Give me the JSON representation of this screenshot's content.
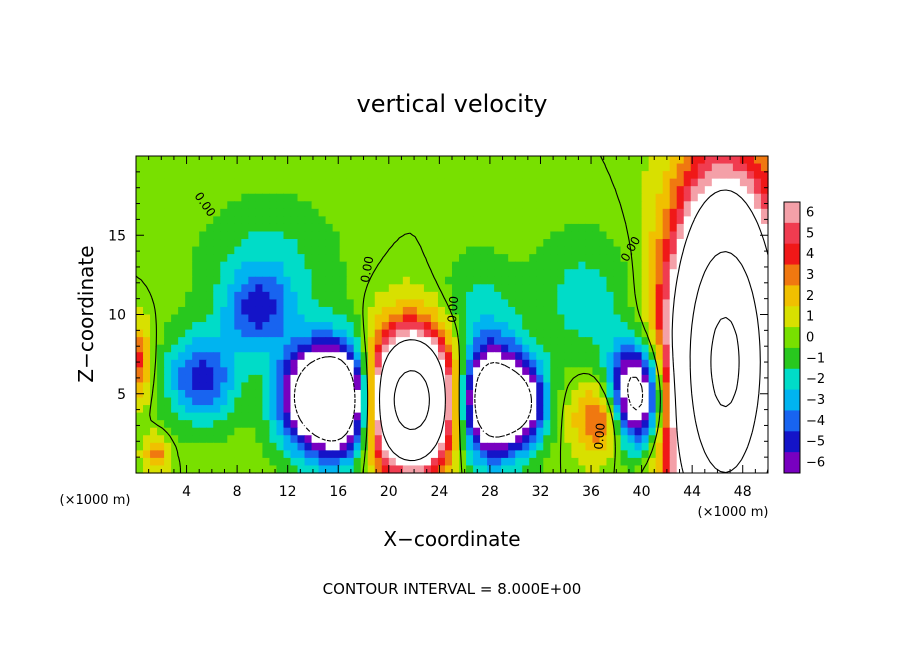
{
  "chart_data": {
    "type": "heatmap",
    "title": "vertical velocity",
    "xlabel": "X−coordinate",
    "ylabel": "Z−coordinate",
    "x_unit": "(×1000 m)",
    "xlim": [
      0,
      50
    ],
    "ylim": [
      0,
      20
    ],
    "x_ticks": [
      4,
      8,
      12,
      16,
      20,
      24,
      28,
      32,
      36,
      40,
      44,
      48
    ],
    "x_tick_labels": [
      "4",
      "8",
      "12",
      "16",
      "20",
      "24",
      "28",
      "32",
      "36",
      "40",
      "44",
      "48"
    ],
    "y_ticks": [
      5,
      10,
      15
    ],
    "y_tick_labels": [
      "5",
      "10",
      "15"
    ],
    "colorbar": {
      "values": [
        6,
        5,
        4,
        3,
        2,
        1,
        0,
        -1,
        -2,
        -3,
        -4,
        -5,
        -6
      ],
      "labels": [
        "6",
        "5",
        "4",
        "3",
        "2",
        "1",
        "0",
        "−1",
        "−2",
        "−3",
        "−4",
        "−5",
        "−6"
      ],
      "colors": [
        "#f4a0a8",
        "#f03c50",
        "#f01818",
        "#f07810",
        "#f0c000",
        "#d8e000",
        "#78e000",
        "#28c81e",
        "#00dcc8",
        "#00b4f0",
        "#1864f0",
        "#1414c8",
        "#7800c0"
      ]
    },
    "contour_labels": [
      "0.00",
      "0.00",
      "0.00",
      "0.00",
      "0.00"
    ],
    "features": [
      {
        "kind": "updraft",
        "x": 21.8,
        "z": 4.6,
        "rx": 3.2,
        "rz": 4.0,
        "peak": 20
      },
      {
        "kind": "updraft",
        "x": 46.6,
        "z": 7.0,
        "rx": 4.0,
        "rz": 10.0,
        "peak": 26
      },
      {
        "kind": "updraft",
        "x": 37.0,
        "z": 3.5,
        "rx": 2.2,
        "rz": 2.4,
        "peak": 5
      },
      {
        "kind": "updraft",
        "x": 0.0,
        "z": 7.0,
        "rx": 1.2,
        "rz": 2.4,
        "peak": 4
      },
      {
        "kind": "updraft",
        "x": 1.6,
        "z": 1.2,
        "rx": 1.0,
        "rz": 1.2,
        "peak": 3
      },
      {
        "kind": "downdraft",
        "x": 5.2,
        "z": 6.0,
        "rx": 2.8,
        "rz": 2.8,
        "peak": -5
      },
      {
        "kind": "downdraft",
        "x": 9.6,
        "z": 10.2,
        "rx": 2.6,
        "rz": 2.4,
        "peak": -4
      },
      {
        "kind": "downdraft",
        "x": 13.5,
        "z": 4.8,
        "rx": 2.6,
        "rz": 3.4,
        "peak": -8
      },
      {
        "kind": "downdraft",
        "x": 16.3,
        "z": 4.6,
        "rx": 2.4,
        "rz": 3.4,
        "peak": -12
      },
      {
        "kind": "downdraft",
        "x": 28.0,
        "z": 4.6,
        "rx": 2.6,
        "rz": 3.6,
        "peak": -12
      },
      {
        "kind": "downdraft",
        "x": 30.8,
        "z": 4.4,
        "rx": 1.8,
        "rz": 2.6,
        "peak": -6
      },
      {
        "kind": "downdraft",
        "x": 39.5,
        "z": 4.8,
        "rx": 2.2,
        "rz": 3.2,
        "peak": -11
      },
      {
        "kind": "downdraft",
        "x": 10.5,
        "z": 13.0,
        "rx": 5.0,
        "rz": 4.0,
        "peak": -2
      },
      {
        "kind": "downdraft",
        "x": 35.5,
        "z": 11.0,
        "rx": 4.0,
        "rz": 4.0,
        "peak": -2
      },
      {
        "kind": "downdraft",
        "x": 27.0,
        "z": 11.0,
        "rx": 3.0,
        "rz": 3.0,
        "peak": -1.5
      }
    ]
  },
  "footer": {
    "contour_interval": "CONTOUR INTERVAL = 8.000E+00"
  }
}
